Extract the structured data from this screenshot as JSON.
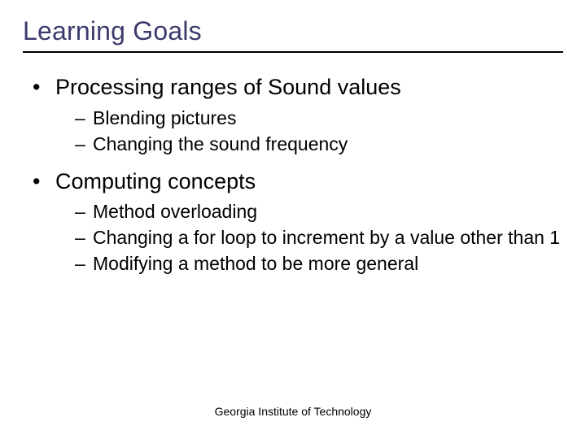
{
  "slide": {
    "title": "Learning Goals",
    "title_color": "#3b3b6d",
    "title_fontsize": 32,
    "underline_color": "#000000",
    "bullets": [
      {
        "text": "Processing ranges of Sound values",
        "sub": [
          "Blending pictures",
          "Changing the sound frequency"
        ]
      },
      {
        "text": "Computing concepts",
        "sub": [
          "Method overloading",
          "Changing a for loop to increment by a value other than 1",
          "Modifying a method to be more general"
        ]
      }
    ],
    "body_fontsize_level1": 27,
    "body_fontsize_level2": 23,
    "text_color": "#000000",
    "background_color": "#ffffff",
    "footer": "Georgia Institute of Technology",
    "footer_fontsize": 14
  }
}
